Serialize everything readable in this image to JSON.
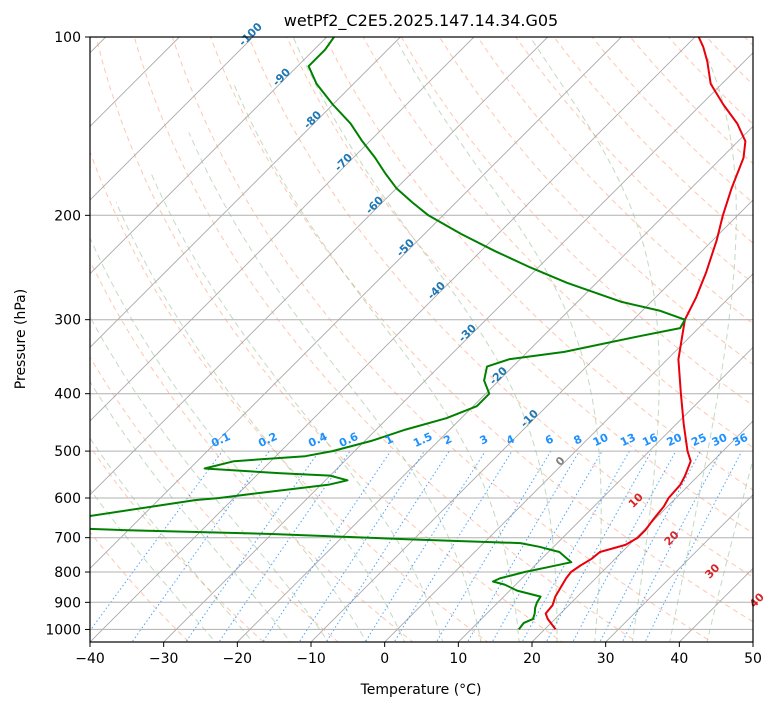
{
  "chart_data": {
    "type": "line",
    "title": "wetPf2_C2E5.2025.147.14.34.G05",
    "xlabel": "Temperature (°C)",
    "ylabel": "Pressure (hPa)",
    "xlim": [
      -40,
      50
    ],
    "ylim": [
      1050,
      100
    ],
    "y_scale": "log",
    "grid": true,
    "x_ticks": [
      -40,
      -30,
      -20,
      -10,
      0,
      10,
      20,
      30,
      40,
      50
    ],
    "y_ticks": [
      100,
      200,
      300,
      400,
      500,
      600,
      700,
      800,
      900,
      1000
    ],
    "colors": {
      "temperature": "#e8000b",
      "dewpoint": "#008000",
      "isotherm": "#a9a9a9",
      "dry_adiabat": "#ffa07a",
      "moist_adiabat": "#8fbc8f",
      "mixing_ratio": "#1e90ff",
      "isotherm_label": "#1f77b4",
      "adiabat_label": "#d62728"
    },
    "isotherm_labels": [
      "-100",
      "-90",
      "-80",
      "-70",
      "-60",
      "-50",
      "-40",
      "-30",
      "-20",
      "-10",
      "0"
    ],
    "isotherm_label_values": [
      -100,
      -90,
      -80,
      -70,
      -60,
      -50,
      -40,
      -30,
      -20,
      -10,
      0
    ],
    "adiabat_labels": [
      "10",
      "20",
      "30",
      "40"
    ],
    "adiabat_label_values": [
      10,
      20,
      30,
      40
    ],
    "mixing_ratio_labels": [
      "0.1",
      "0.2",
      "0.4",
      "0.6",
      "1",
      "1.5",
      "2",
      "3",
      "4",
      "6",
      "8",
      "10",
      "13",
      "16",
      "20",
      "25",
      "30",
      "36"
    ],
    "mixing_ratio_values": [
      0.1,
      0.2,
      0.4,
      0.6,
      1,
      1.5,
      2,
      3,
      4,
      6,
      8,
      10,
      13,
      16,
      20,
      25,
      30,
      36
    ],
    "series": [
      {
        "role": "temperature",
        "points": [
          [
            1000,
            21.5
          ],
          [
            960,
            19.0
          ],
          [
            940,
            18.0
          ],
          [
            910,
            17.8
          ],
          [
            880,
            17.0
          ],
          [
            850,
            16.5
          ],
          [
            820,
            16.0
          ],
          [
            800,
            15.8
          ],
          [
            780,
            16.2
          ],
          [
            760,
            16.8
          ],
          [
            740,
            17.0
          ],
          [
            720,
            19.5
          ],
          [
            700,
            20.2
          ],
          [
            680,
            20.2
          ],
          [
            650,
            19.8
          ],
          [
            620,
            19.5
          ],
          [
            600,
            19.0
          ],
          [
            570,
            18.8
          ],
          [
            550,
            18.2
          ],
          [
            520,
            17.0
          ],
          [
            500,
            15.2
          ],
          [
            450,
            11.0
          ],
          [
            400,
            6.5
          ],
          [
            350,
            1.5
          ],
          [
            300,
            -3.0
          ],
          [
            275,
            -4.5
          ],
          [
            250,
            -6.5
          ],
          [
            220,
            -9.5
          ],
          [
            200,
            -12.0
          ],
          [
            180,
            -14.5
          ],
          [
            160,
            -17.0
          ],
          [
            150,
            -19.0
          ],
          [
            140,
            -22.5
          ],
          [
            130,
            -27.0
          ],
          [
            120,
            -31.5
          ],
          [
            110,
            -35.0
          ],
          [
            104,
            -37.5
          ],
          [
            100,
            -39.5
          ]
        ]
      },
      {
        "role": "dewpoint",
        "points": [
          [
            1000,
            16.5
          ],
          [
            975,
            16.3
          ],
          [
            960,
            17.0
          ],
          [
            940,
            16.5
          ],
          [
            920,
            15.8
          ],
          [
            900,
            15.3
          ],
          [
            880,
            15.0
          ],
          [
            860,
            11.0
          ],
          [
            840,
            8.5
          ],
          [
            830,
            6.5
          ],
          [
            820,
            7.0
          ],
          [
            800,
            9.5
          ],
          [
            785,
            12.0
          ],
          [
            770,
            14.5
          ],
          [
            755,
            13.0
          ],
          [
            740,
            11.5
          ],
          [
            725,
            8.0
          ],
          [
            715,
            5.0
          ],
          [
            705,
            -10.0
          ],
          [
            690,
            -30.0
          ],
          [
            680,
            -50.0
          ],
          [
            670,
            -65.0
          ],
          [
            605,
            -45.0
          ],
          [
            600,
            -42.0
          ],
          [
            590,
            -38.0
          ],
          [
            580,
            -33.5
          ],
          [
            570,
            -29.0
          ],
          [
            560,
            -27.0
          ],
          [
            550,
            -30.0
          ],
          [
            545,
            -37.0
          ],
          [
            535,
            -48.0
          ],
          [
            520,
            -45.0
          ],
          [
            510,
            -36.0
          ],
          [
            500,
            -33.0
          ],
          [
            480,
            -29.0
          ],
          [
            460,
            -26.0
          ],
          [
            440,
            -22.0
          ],
          [
            420,
            -19.5
          ],
          [
            400,
            -19.5
          ],
          [
            380,
            -22.0
          ],
          [
            360,
            -23.5
          ],
          [
            350,
            -21.5
          ],
          [
            340,
            -15.0
          ],
          [
            320,
            -7.0
          ],
          [
            310,
            -2.5
          ],
          [
            300,
            -3.0
          ],
          [
            290,
            -7.5
          ],
          [
            280,
            -14.0
          ],
          [
            260,
            -24.0
          ],
          [
            245,
            -31.0
          ],
          [
            230,
            -38.0
          ],
          [
            215,
            -45.0
          ],
          [
            200,
            -52.0
          ],
          [
            190,
            -56.0
          ],
          [
            180,
            -60.0
          ],
          [
            170,
            -63.5
          ],
          [
            160,
            -67.0
          ],
          [
            150,
            -71.0
          ],
          [
            140,
            -75.0
          ],
          [
            130,
            -80.0
          ],
          [
            120,
            -85.0
          ],
          [
            112,
            -88.5
          ],
          [
            105,
            -88.5
          ],
          [
            100,
            -89.0
          ]
        ]
      }
    ]
  }
}
